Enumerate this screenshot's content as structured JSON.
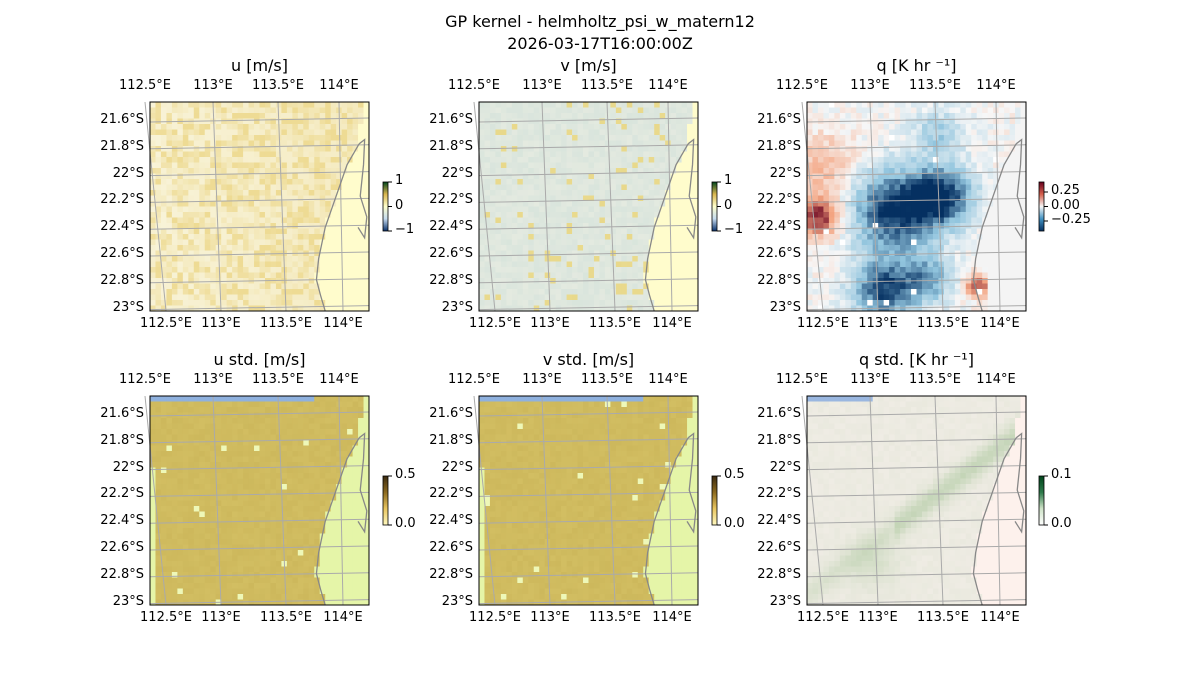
{
  "figure": {
    "title": "GP kernel - helmholtz_psi_w_matern12",
    "subtitle": "2026-03-17T16:00:00Z"
  },
  "chart_data": {
    "type": "heatmap",
    "lon_ticks": [
      "112.5°E",
      "113°E",
      "113.5°E",
      "114°E"
    ],
    "lat_ticks": [
      "21.6°S",
      "21.8°S",
      "22°S",
      "22.2°S",
      "22.4°S",
      "22.6°S",
      "22.8°S",
      "23°S"
    ],
    "panels": [
      {
        "title": "u [m/s]",
        "colorbar_ticks": [
          "1",
          "0",
          "−1"
        ],
        "vmin": -1,
        "vmax": 1,
        "cmap": "diverging-yellow"
      },
      {
        "title": "v [m/s]",
        "colorbar_ticks": [
          "1",
          "0",
          "−1"
        ],
        "vmin": -1,
        "vmax": 1,
        "cmap": "diverging-yellow"
      },
      {
        "title": "q [K hr ⁻¹]",
        "colorbar_ticks": [
          "0.25",
          "0.00",
          "−0.25"
        ],
        "vmin": -0.35,
        "vmax": 0.35,
        "cmap": "RdBu_r"
      },
      {
        "title": "u std. [m/s]",
        "colorbar_ticks": [
          "0.5",
          "0.0"
        ],
        "vmin": 0,
        "vmax": 0.5,
        "cmap": "olive"
      },
      {
        "title": "v std. [m/s]",
        "colorbar_ticks": [
          "0.5",
          "0.0"
        ],
        "vmin": 0,
        "vmax": 0.5,
        "cmap": "olive"
      },
      {
        "title": "q std. [K hr ⁻¹]",
        "colorbar_ticks": [
          "0.1",
          "0.0"
        ],
        "vmin": 0,
        "vmax": 0.1,
        "cmap": "green-white"
      }
    ]
  }
}
